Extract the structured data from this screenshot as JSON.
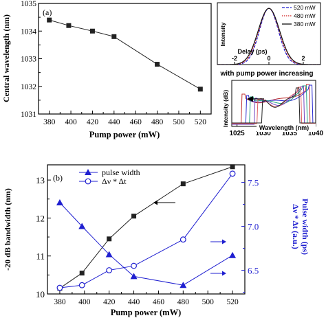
{
  "chart_data": [
    {
      "panel": "a",
      "type": "line",
      "panel_label": "(a)",
      "xlabel": "Pump power (mW)",
      "ylabel": "Central wavelength (nm)",
      "xlim": [
        370,
        530
      ],
      "ylim": [
        1031,
        1035
      ],
      "xticks": [
        380,
        400,
        420,
        440,
        460,
        480,
        500,
        520
      ],
      "yticks": [
        1031,
        1032,
        1033,
        1034,
        1035
      ],
      "series": [
        {
          "color": "#222222",
          "marker": "square",
          "x": [
            380,
            398,
            420,
            440,
            480,
            520
          ],
          "y": [
            1034.4,
            1034.2,
            1034.0,
            1033.8,
            1032.8,
            1031.9
          ]
        }
      ],
      "grid": false
    },
    {
      "panel": "inset-autocorrelation",
      "type": "line",
      "xlabel": "Delay (ps)",
      "ylabel": "Intensity",
      "xlim": [
        -3,
        3
      ],
      "ylim": [
        0,
        1.1
      ],
      "xticks": [
        -2,
        0,
        2
      ],
      "legend_position": "top-right",
      "series": [
        {
          "name": "520 mW",
          "color": "#1f1fd0",
          "style": "dashed",
          "fwhm": 1.3
        },
        {
          "name": "480 mW",
          "color": "#d01f1f",
          "style": "dotted",
          "fwhm": 1.38
        },
        {
          "name": "380 mW",
          "color": "#111111",
          "style": "solid",
          "fwhm": 1.46
        }
      ]
    },
    {
      "panel": "inset-spectra",
      "type": "line",
      "title": "with pump power increasing",
      "xlabel": "Wavelength (nm)",
      "ylabel": "Intensity (dB)",
      "xlim": [
        1024,
        1040
      ],
      "xticks": [
        1025,
        1030,
        1035,
        1040
      ],
      "series": [
        {
          "color": "#c03030",
          "left_edge": 1026.2,
          "right_edge": 1038.6
        },
        {
          "color": "#2a2ad0",
          "left_edge": 1027.0,
          "right_edge": 1039.1
        },
        {
          "color": "#20a080",
          "left_edge": 1027.8,
          "right_edge": 1038.0
        },
        {
          "color": "#7040c0",
          "left_edge": 1028.6,
          "right_edge": 1037.5
        },
        {
          "color": "#e06060",
          "left_edge": 1029.2,
          "right_edge": 1037.0
        },
        {
          "color": "#222222",
          "left_edge": 1030.0,
          "right_edge": 1036.6
        }
      ]
    },
    {
      "panel": "b",
      "type": "line",
      "panel_label": "(b)",
      "xlabel": "Pump power (mW)",
      "ylabel": "-20 dB bandwidth (nm)",
      "y2label_line1": "Pulse width (ps)",
      "y2label_line2": "Δν * Δt (a.u.)",
      "xlim": [
        370,
        530
      ],
      "ylim": [
        10,
        13.4
      ],
      "y2lim": [
        6.23,
        7.7
      ],
      "xticks": [
        380,
        400,
        420,
        440,
        460,
        480,
        500,
        520
      ],
      "yticks": [
        10,
        11,
        12,
        13
      ],
      "y2ticks": [
        6.5,
        7.0,
        7.5
      ],
      "legend_position": "top-right",
      "series": [
        {
          "name": "",
          "axis": "left",
          "color": "#222222",
          "marker": "square",
          "x": [
            380,
            398,
            420,
            440,
            480,
            520
          ],
          "y": [
            10.15,
            10.55,
            11.45,
            12.05,
            12.9,
            13.35
          ]
        },
        {
          "name": "pulse width",
          "axis": "right",
          "color": "#1f1fd0",
          "marker": "triangle",
          "x": [
            380,
            398,
            420,
            440,
            480,
            520
          ],
          "y": [
            7.27,
            7.0,
            6.68,
            6.43,
            6.33,
            6.67
          ]
        },
        {
          "name": "Δν * Δt",
          "axis": "right",
          "color": "#1f1fd0",
          "marker": "open-circle",
          "x": [
            380,
            398,
            420,
            440,
            480,
            520
          ],
          "y": [
            6.3,
            6.33,
            6.5,
            6.55,
            6.85,
            7.6
          ]
        }
      ]
    }
  ]
}
